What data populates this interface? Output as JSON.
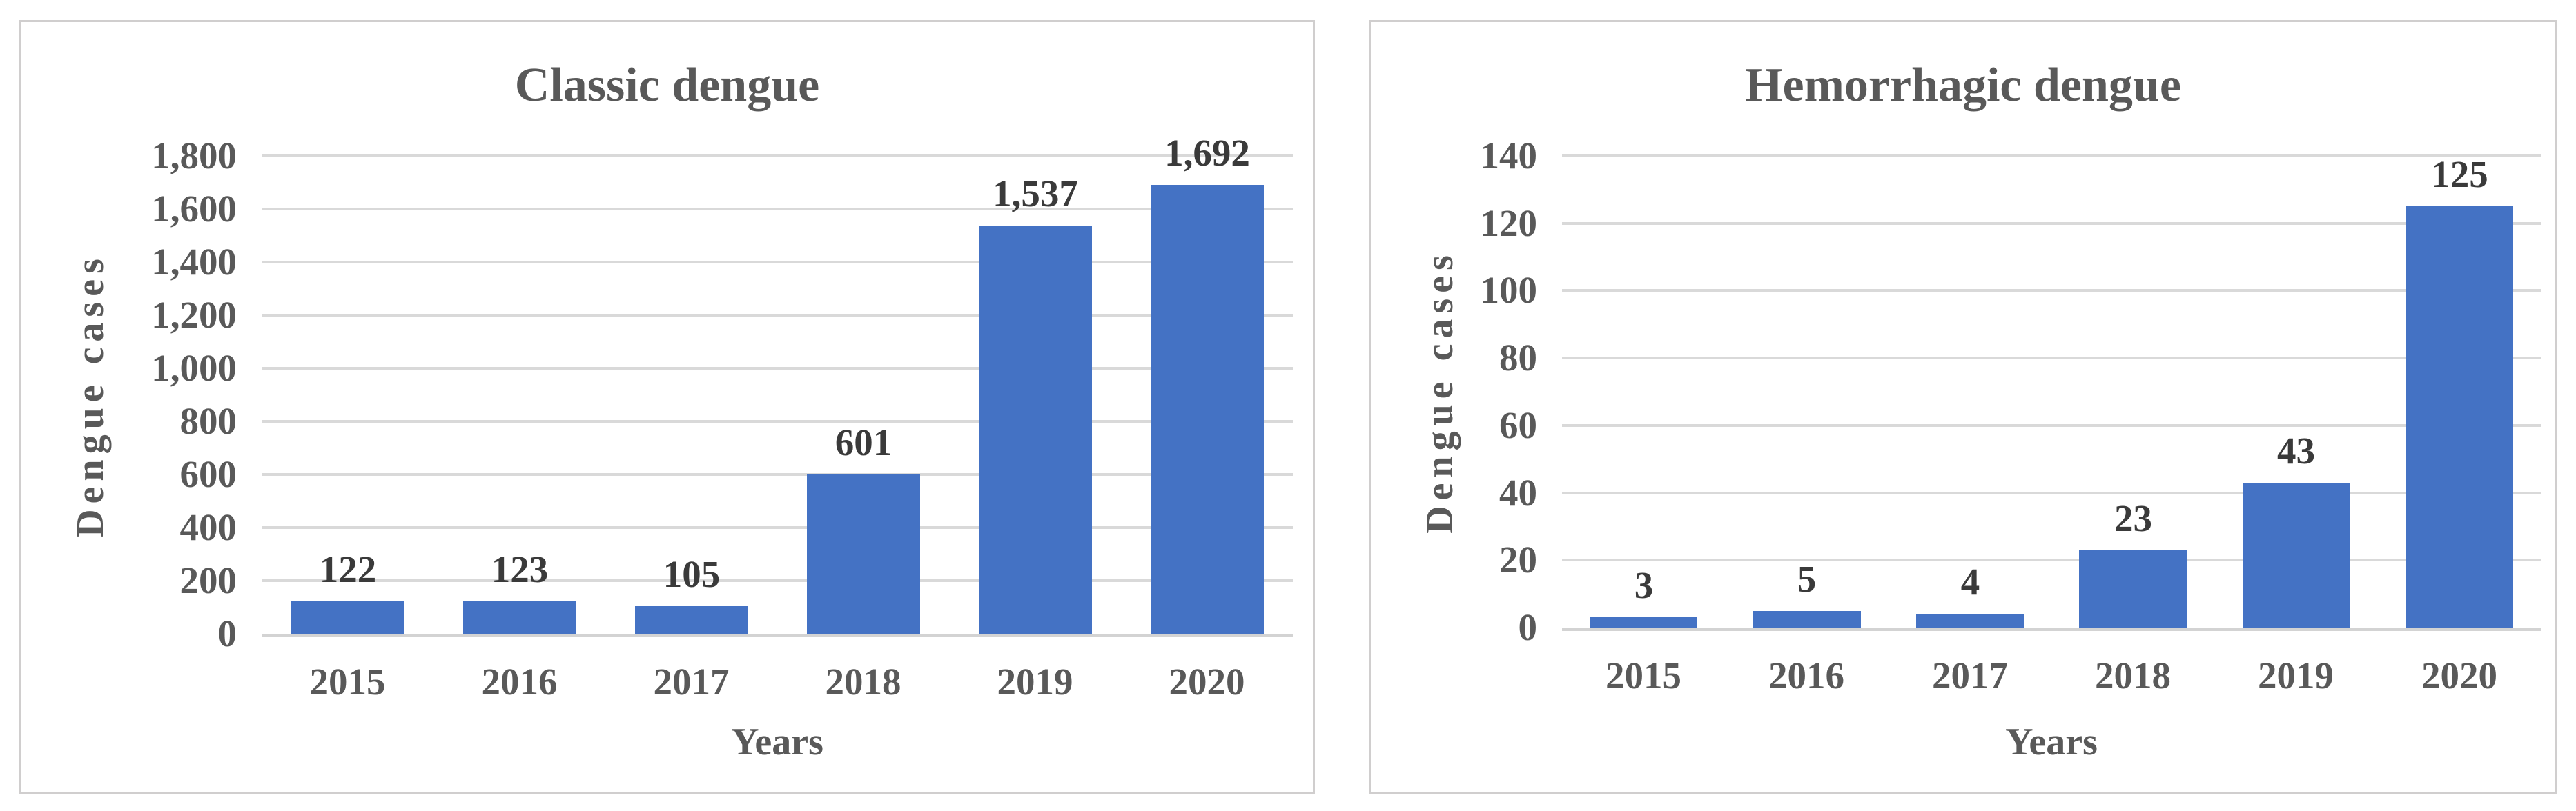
{
  "colors": {
    "bar_fill": "#4472C4",
    "gridline": "#D9D9D9",
    "zero_line": "#D3D3D3",
    "panel_border": "#D0CECE",
    "title_text": "#595959",
    "axis_text": "#595959",
    "data_label_text": "#3A3A3A",
    "background": "#FFFFFF"
  },
  "chart_data": [
    {
      "type": "bar",
      "title": "Classic dengue",
      "xlabel": "Years",
      "ylabel": "Dengue cases",
      "categories": [
        "2015",
        "2016",
        "2017",
        "2018",
        "2019",
        "2020"
      ],
      "values": [
        122,
        123,
        105,
        601,
        1537,
        1692
      ],
      "value_labels": [
        "122",
        "123",
        "105",
        "601",
        "1,537",
        "1,692"
      ],
      "ylim": [
        0,
        1800
      ],
      "y_tick_step": 200,
      "y_tick_labels": [
        "0",
        "200",
        "400",
        "600",
        "800",
        "1,000",
        "1,200",
        "1,400",
        "1,600",
        "1,800"
      ],
      "grid": true,
      "legend": false
    },
    {
      "type": "bar",
      "title": "Hemorrhagic dengue",
      "xlabel": "Years",
      "ylabel": "Dengue cases",
      "categories": [
        "2015",
        "2016",
        "2017",
        "2018",
        "2019",
        "2020"
      ],
      "values": [
        3,
        5,
        4,
        23,
        43,
        125
      ],
      "value_labels": [
        "3",
        "5",
        "4",
        "23",
        "43",
        "125"
      ],
      "ylim": [
        0,
        140
      ],
      "y_tick_step": 20,
      "y_tick_labels": [
        "0",
        "20",
        "40",
        "60",
        "80",
        "100",
        "120",
        "140"
      ],
      "grid": true,
      "legend": false
    }
  ]
}
